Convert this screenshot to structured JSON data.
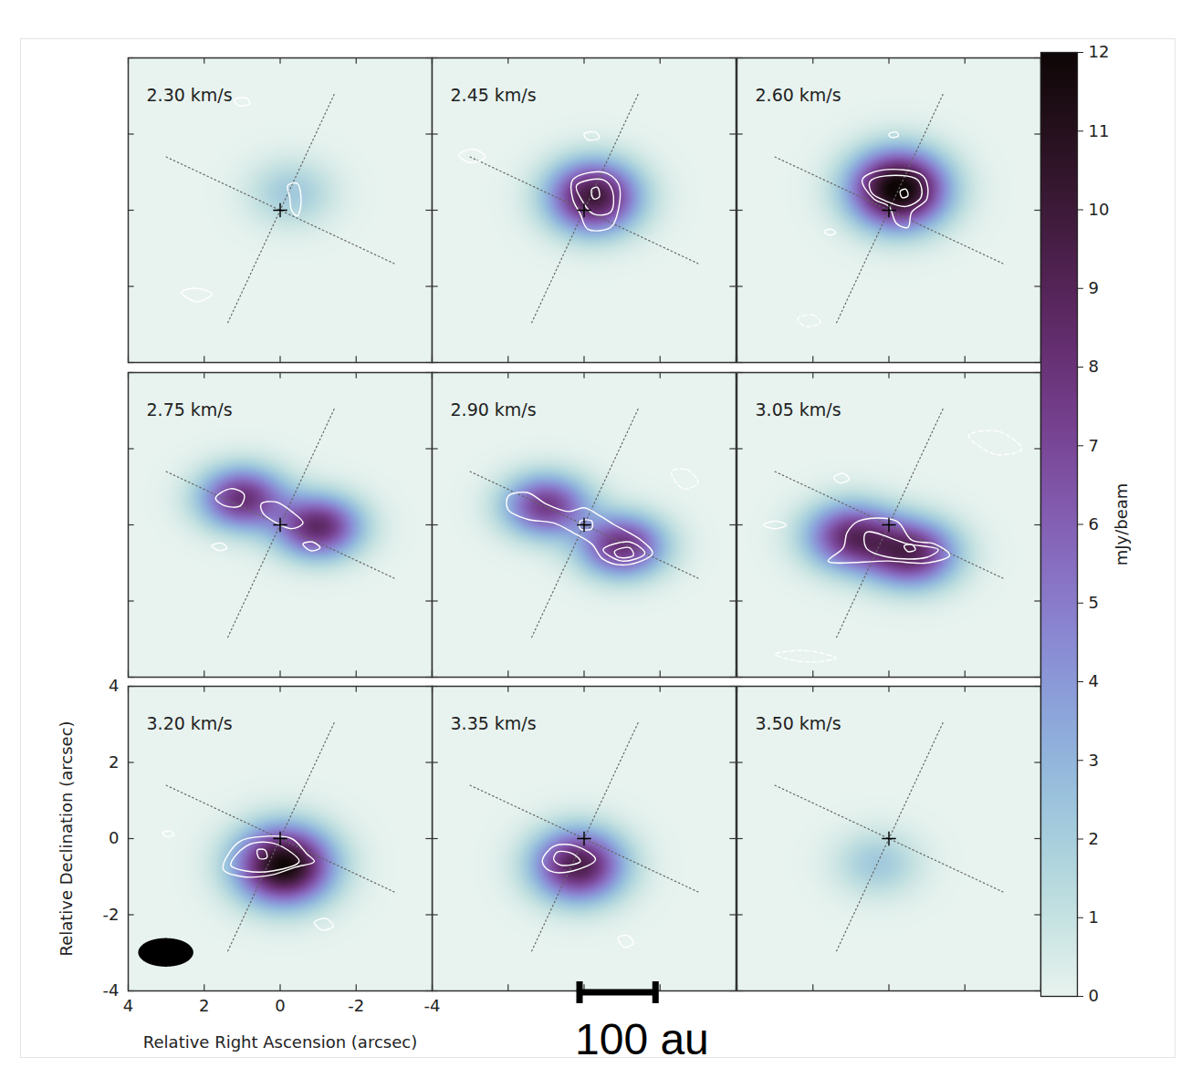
{
  "chart_data": {
    "type": "channel_map",
    "xlabel": "Relative Right Ascension (arcsec)",
    "ylabel": "Relative Declination (arcsec)",
    "xlim": [
      4,
      -4
    ],
    "ylim": [
      -4,
      4
    ],
    "xticks": [
      4,
      2,
      0,
      -2,
      -4
    ],
    "yticks": [
      -4,
      -2,
      0,
      2,
      4
    ],
    "colorbar": {
      "label": "mJy/beam",
      "range": [
        0,
        12
      ],
      "ticks": [
        0,
        1,
        2,
        3,
        4,
        5,
        6,
        7,
        8,
        9,
        10,
        11,
        12
      ]
    },
    "center": [
      0,
      0
    ],
    "disk_axes": [
      [
        [
          3.0,
          1.4
        ],
        [
          -3.0,
          -1.4
        ]
      ],
      [
        [
          -1.42,
          3.04
        ],
        [
          1.4,
          -3.0
        ]
      ]
    ],
    "beam": {
      "x": 3.0,
      "y": -3.0,
      "major": 1.45,
      "minor": 0.75
    },
    "scale_bar": {
      "label": "100 au",
      "length": 2
    },
    "panels": [
      {
        "title": "2.30 km/s",
        "tick_labels": false,
        "emission": [
          {
            "x": -0.3,
            "y": 0.45,
            "peak": 2.2,
            "fwhm_x": 1.8,
            "fwhm_y": 1.4
          }
        ],
        "contours": [
          [
            [
              -0.2,
              0.65
            ],
            [
              -0.45,
              0.7
            ],
            [
              -0.55,
              0.2
            ],
            [
              -0.45,
              -0.15
            ],
            [
              -0.3,
              0.0
            ],
            [
              -0.25,
              0.35
            ]
          ],
          [
            [
              2.6,
              -2.15
            ],
            [
              2.2,
              -2.05
            ],
            [
              1.8,
              -2.2
            ],
            [
              2.2,
              -2.4
            ]
          ],
          [
            [
              1.2,
              2.9
            ],
            [
              0.9,
              2.95
            ],
            [
              0.8,
              2.8
            ],
            [
              1.1,
              2.75
            ]
          ]
        ],
        "negative_contours": []
      },
      {
        "title": "2.45 km/s",
        "tick_labels": false,
        "emission": [
          {
            "x": -0.25,
            "y": 0.35,
            "peak": 10,
            "fwhm_x": 1.9,
            "fwhm_y": 1.5
          }
        ],
        "contours": [
          [
            [
              0.3,
              0.8
            ],
            [
              -0.5,
              1.0
            ],
            [
              -0.9,
              0.7
            ],
            [
              -0.9,
              0.0
            ],
            [
              -0.7,
              -0.45
            ],
            [
              -0.1,
              -0.5
            ],
            [
              0.1,
              -0.1
            ],
            [
              0.3,
              0.3
            ]
          ],
          [
            [
              0.2,
              0.65
            ],
            [
              -0.5,
              0.8
            ],
            [
              -0.75,
              0.5
            ],
            [
              -0.7,
              -0.05
            ],
            [
              -0.25,
              -0.1
            ],
            [
              0.05,
              0.25
            ]
          ],
          [
            [
              -0.2,
              0.55
            ],
            [
              -0.35,
              0.6
            ],
            [
              -0.4,
              0.35
            ],
            [
              -0.25,
              0.3
            ]
          ],
          [
            [
              3.3,
              1.45
            ],
            [
              2.9,
              1.6
            ],
            [
              2.6,
              1.4
            ],
            [
              3.0,
              1.25
            ]
          ],
          [
            [
              0.0,
              2.0
            ],
            [
              -0.3,
              2.05
            ],
            [
              -0.4,
              1.9
            ],
            [
              -0.1,
              1.85
            ]
          ]
        ],
        "negative_contours": []
      },
      {
        "title": "2.60 km/s",
        "tick_labels": false,
        "emission": [
          {
            "x": -0.25,
            "y": 0.55,
            "peak": 12.5,
            "fwhm_x": 2.0,
            "fwhm_y": 1.6
          }
        ],
        "contours": [
          [
            [
              0.7,
              0.8
            ],
            [
              0.2,
              1.05
            ],
            [
              -0.9,
              0.9
            ],
            [
              -1.0,
              0.3
            ],
            [
              -0.6,
              -0.05
            ],
            [
              -0.5,
              -0.45
            ],
            [
              -0.2,
              -0.35
            ],
            [
              0.0,
              0.1
            ],
            [
              0.4,
              0.3
            ]
          ],
          [
            [
              0.5,
              0.75
            ],
            [
              0.1,
              0.9
            ],
            [
              -0.75,
              0.8
            ],
            [
              -0.85,
              0.35
            ],
            [
              -0.45,
              0.1
            ],
            [
              0.1,
              0.25
            ],
            [
              0.45,
              0.45
            ]
          ],
          [
            [
              -0.3,
              0.5
            ],
            [
              -0.45,
              0.55
            ],
            [
              -0.5,
              0.38
            ],
            [
              -0.35,
              0.33
            ]
          ],
          [
            [
              0.0,
              2.0
            ],
            [
              -0.2,
              2.05
            ],
            [
              -0.25,
              1.95
            ],
            [
              -0.05,
              1.92
            ]
          ],
          [
            [
              1.7,
              -0.55
            ],
            [
              1.5,
              -0.5
            ],
            [
              1.4,
              -0.6
            ],
            [
              1.6,
              -0.65
            ]
          ]
        ],
        "negative_contours": [
          [
            [
              2.4,
              -2.85
            ],
            [
              2.0,
              -2.75
            ],
            [
              1.8,
              -2.95
            ],
            [
              2.2,
              -3.05
            ]
          ]
        ]
      },
      {
        "title": "2.75 km/s",
        "tick_labels": false,
        "emission": [
          {
            "x": 1.0,
            "y": 0.7,
            "peak": 8,
            "fwhm_x": 1.8,
            "fwhm_y": 1.3
          },
          {
            "x": -1.0,
            "y": -0.05,
            "peak": 8.5,
            "fwhm_x": 1.8,
            "fwhm_y": 1.3
          }
        ],
        "contours": [
          [
            [
              1.7,
              0.7
            ],
            [
              1.3,
              0.95
            ],
            [
              0.95,
              0.8
            ],
            [
              1.05,
              0.5
            ],
            [
              1.45,
              0.5
            ]
          ],
          [
            [
              0.5,
              0.55
            ],
            [
              0.1,
              0.6
            ],
            [
              -0.3,
              0.35
            ],
            [
              -0.6,
              0.05
            ],
            [
              -0.3,
              -0.1
            ],
            [
              0.1,
              0.05
            ],
            [
              0.45,
              0.3
            ]
          ],
          [
            [
              1.8,
              -0.55
            ],
            [
              1.55,
              -0.48
            ],
            [
              1.4,
              -0.6
            ],
            [
              1.6,
              -0.68
            ]
          ],
          [
            [
              -0.6,
              -0.5
            ],
            [
              -0.85,
              -0.45
            ],
            [
              -1.05,
              -0.6
            ],
            [
              -0.8,
              -0.68
            ]
          ]
        ],
        "negative_contours": []
      },
      {
        "title": "2.90 km/s",
        "tick_labels": false,
        "emission": [
          {
            "x": 1.0,
            "y": 0.5,
            "peak": 7.5,
            "fwhm_x": 1.8,
            "fwhm_y": 1.3
          },
          {
            "x": -1.0,
            "y": -0.55,
            "peak": 8,
            "fwhm_x": 1.8,
            "fwhm_y": 1.3
          }
        ],
        "contours": [
          [
            [
              2.0,
              0.75
            ],
            [
              1.5,
              0.85
            ],
            [
              1.0,
              0.55
            ],
            [
              0.4,
              0.35
            ],
            [
              0.0,
              0.45
            ],
            [
              -0.4,
              0.25
            ],
            [
              -0.8,
              0.0
            ],
            [
              -1.5,
              -0.4
            ],
            [
              -1.8,
              -0.75
            ],
            [
              -1.1,
              -1.05
            ],
            [
              -0.5,
              -0.9
            ],
            [
              -0.2,
              -0.5
            ],
            [
              0.3,
              -0.2
            ],
            [
              0.8,
              0.05
            ],
            [
              1.5,
              0.15
            ],
            [
              2.0,
              0.4
            ]
          ],
          [
            [
              -0.5,
              -0.65
            ],
            [
              -1.2,
              -0.45
            ],
            [
              -1.6,
              -0.75
            ],
            [
              -1.0,
              -0.95
            ]
          ],
          [
            [
              -0.8,
              -0.7
            ],
            [
              -1.2,
              -0.6
            ],
            [
              -1.3,
              -0.8
            ],
            [
              -0.9,
              -0.85
            ]
          ],
          [
            [
              0.1,
              0.1
            ],
            [
              -0.2,
              0.1
            ],
            [
              -0.2,
              -0.1
            ],
            [
              0.1,
              -0.1
            ]
          ]
        ],
        "negative_contours": [
          [
            [
              -2.3,
              1.4
            ],
            [
              -2.7,
              1.45
            ],
            [
              -3.0,
              1.1
            ],
            [
              -2.6,
              0.95
            ]
          ]
        ]
      },
      {
        "title": "3.05 km/s",
        "tick_labels": false,
        "emission": [
          {
            "x": 1.0,
            "y": -0.3,
            "peak": 8,
            "fwhm_x": 1.9,
            "fwhm_y": 1.4
          },
          {
            "x": -0.6,
            "y": -0.75,
            "peak": 8.5,
            "fwhm_x": 1.9,
            "fwhm_y": 1.4
          }
        ],
        "contours": [
          [
            [
              1.1,
              -0.2
            ],
            [
              0.8,
              0.1
            ],
            [
              -0.2,
              0.1
            ],
            [
              -0.6,
              -0.4
            ],
            [
              -1.2,
              -0.5
            ],
            [
              -1.6,
              -0.8
            ],
            [
              -1.0,
              -1.0
            ],
            [
              0.0,
              -0.95
            ],
            [
              1.6,
              -0.95
            ],
            [
              1.2,
              -0.6
            ]
          ],
          [
            [
              0.6,
              -0.2
            ],
            [
              -0.5,
              -0.5
            ],
            [
              -1.3,
              -0.65
            ],
            [
              -1.0,
              -0.85
            ],
            [
              0.0,
              -0.85
            ],
            [
              0.6,
              -0.6
            ]
          ],
          [
            [
              -0.4,
              -0.55
            ],
            [
              -0.6,
              -0.52
            ],
            [
              -0.7,
              -0.65
            ],
            [
              -0.5,
              -0.7
            ]
          ],
          [
            [
              3.3,
              0.0
            ],
            [
              3.0,
              0.1
            ],
            [
              2.7,
              0.0
            ],
            [
              3.0,
              -0.1
            ]
          ],
          [
            [
              1.45,
              1.25
            ],
            [
              1.2,
              1.35
            ],
            [
              1.05,
              1.2
            ],
            [
              1.3,
              1.1
            ]
          ]
        ],
        "negative_contours": [
          [
            [
              -2.1,
              2.35
            ],
            [
              -2.9,
              2.45
            ],
            [
              -3.5,
              2.0
            ],
            [
              -2.8,
              1.85
            ]
          ],
          [
            [
              3.0,
              -3.4
            ],
            [
              2.2,
              -3.3
            ],
            [
              1.4,
              -3.5
            ],
            [
              2.2,
              -3.6
            ]
          ]
        ]
      },
      {
        "title": "3.20 km/s",
        "emission": [
          {
            "x": -0.1,
            "y": -0.7,
            "peak": 12,
            "fwhm_x": 2.0,
            "fwhm_y": 1.6
          }
        ],
        "contours": [
          [
            [
              1.1,
              -0.1
            ],
            [
              0.5,
              0.05
            ],
            [
              -0.3,
              0.0
            ],
            [
              -0.7,
              -0.4
            ],
            [
              -0.9,
              -0.6
            ],
            [
              -0.4,
              -0.75
            ],
            [
              0.2,
              -0.95
            ],
            [
              1.0,
              -1.0
            ],
            [
              1.5,
              -0.8
            ]
          ],
          [
            [
              0.9,
              -0.2
            ],
            [
              0.3,
              -0.1
            ],
            [
              -0.2,
              -0.3
            ],
            [
              -0.5,
              -0.6
            ],
            [
              0.2,
              -0.85
            ],
            [
              0.9,
              -0.85
            ],
            [
              1.3,
              -0.7
            ]
          ],
          [
            [
              0.6,
              -0.3
            ],
            [
              0.4,
              -0.3
            ],
            [
              0.35,
              -0.5
            ],
            [
              0.55,
              -0.52
            ]
          ],
          [
            [
              -0.9,
              -2.2
            ],
            [
              -1.2,
              -2.1
            ],
            [
              -1.4,
              -2.3
            ],
            [
              -1.1,
              -2.4
            ]
          ],
          [
            [
              3.1,
              0.15
            ],
            [
              2.9,
              0.2
            ],
            [
              2.8,
              0.1
            ],
            [
              3.0,
              0.05
            ]
          ]
        ],
        "negative_contours": []
      },
      {
        "title": "3.35 km/s",
        "tick_labels": false,
        "emission": [
          {
            "x": 0.15,
            "y": -0.7,
            "peak": 9.5,
            "fwhm_x": 1.9,
            "fwhm_y": 1.5
          }
        ],
        "contours": [
          [
            [
              0.8,
              -0.2
            ],
            [
              0.2,
              -0.2
            ],
            [
              -0.3,
              -0.55
            ],
            [
              0.3,
              -0.85
            ],
            [
              0.9,
              -0.85
            ],
            [
              1.1,
              -0.6
            ]
          ],
          [
            [
              0.7,
              -0.35
            ],
            [
              0.3,
              -0.4
            ],
            [
              0.1,
              -0.6
            ],
            [
              0.6,
              -0.7
            ],
            [
              0.8,
              -0.55
            ]
          ],
          [
            [
              -0.9,
              -2.6
            ],
            [
              -1.15,
              -2.55
            ],
            [
              -1.3,
              -2.75
            ],
            [
              -1.05,
              -2.85
            ]
          ]
        ],
        "negative_contours": []
      },
      {
        "title": "3.50 km/s",
        "tick_labels": false,
        "emission": [
          {
            "x": 0.3,
            "y": -0.65,
            "peak": 2.2,
            "fwhm_x": 1.8,
            "fwhm_y": 1.4
          }
        ],
        "contours": [],
        "negative_contours": []
      }
    ]
  }
}
